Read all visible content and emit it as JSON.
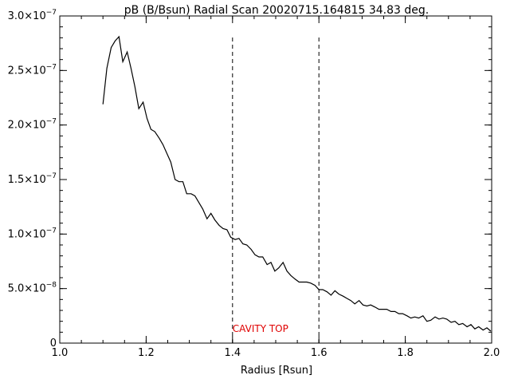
{
  "chart_data": {
    "type": "line",
    "title": "pB (B/Bsun) Radial Scan 20020715.164815 34.83 deg.",
    "xlabel": "Radius [Rsun]",
    "ylabel": "",
    "xlim": [
      1.0,
      2.0
    ],
    "ylim": [
      0,
      3e-07
    ],
    "grid": false,
    "x_ticks": [
      1.0,
      1.2,
      1.4,
      1.6,
      1.8,
      2.0
    ],
    "x_tick_labels": [
      "1.0",
      "1.2",
      "1.4",
      "1.6",
      "1.8",
      "2.0"
    ],
    "y_ticks": [
      {
        "value": 0,
        "mant": "0",
        "exp": ""
      },
      {
        "value": 5e-08,
        "mant": "5.0×10",
        "exp": "−8"
      },
      {
        "value": 1e-07,
        "mant": "1.0×10",
        "exp": "−7"
      },
      {
        "value": 1.5e-07,
        "mant": "1.5×10",
        "exp": "−7"
      },
      {
        "value": 2e-07,
        "mant": "2.0×10",
        "exp": "−7"
      },
      {
        "value": 2.5e-07,
        "mant": "2.5×10",
        "exp": "−7"
      },
      {
        "value": 3e-07,
        "mant": "3.0×10",
        "exp": "−7"
      }
    ],
    "vlines": [
      1.4,
      1.6
    ],
    "annotation": {
      "text": "CAVITY TOP",
      "x": 1.4,
      "y": 1.6e-08,
      "color": "#e00000"
    },
    "series": [
      {
        "color": "#000000",
        "x": [
          1.1,
          1.109,
          1.119,
          1.128,
          1.137,
          1.146,
          1.156,
          1.165,
          1.174,
          1.183,
          1.193,
          1.202,
          1.211,
          1.22,
          1.23,
          1.239,
          1.248,
          1.257,
          1.267,
          1.276,
          1.285,
          1.294,
          1.304,
          1.313,
          1.322,
          1.331,
          1.341,
          1.35,
          1.359,
          1.369,
          1.378,
          1.387,
          1.396,
          1.406,
          1.415,
          1.424,
          1.433,
          1.443,
          1.452,
          1.461,
          1.47,
          1.48,
          1.489,
          1.498,
          1.507,
          1.517,
          1.526,
          1.535,
          1.544,
          1.554,
          1.563,
          1.572,
          1.581,
          1.591,
          1.6,
          1.609,
          1.619,
          1.628,
          1.637,
          1.646,
          1.656,
          1.665,
          1.674,
          1.683,
          1.693,
          1.702,
          1.711,
          1.72,
          1.73,
          1.739,
          1.748,
          1.757,
          1.767,
          1.776,
          1.785,
          1.794,
          1.804,
          1.813,
          1.822,
          1.831,
          1.841,
          1.85,
          1.859,
          1.869,
          1.878,
          1.887,
          1.896,
          1.906,
          1.915,
          1.924,
          1.933,
          1.943,
          1.952,
          1.961,
          1.97,
          1.98,
          1.989,
          1.998
        ],
        "y": [
          2.19e-07,
          2.52e-07,
          2.71e-07,
          2.77e-07,
          2.81e-07,
          2.58e-07,
          2.67e-07,
          2.52e-07,
          2.35e-07,
          2.15e-07,
          2.21e-07,
          2.06e-07,
          1.96e-07,
          1.94e-07,
          1.88e-07,
          1.82e-07,
          1.74e-07,
          1.66e-07,
          1.5e-07,
          1.48e-07,
          1.48e-07,
          1.37e-07,
          1.37e-07,
          1.35e-07,
          1.29e-07,
          1.23e-07,
          1.14e-07,
          1.19e-07,
          1.13e-07,
          1.08e-07,
          1.05e-07,
          1.04e-07,
          9.7e-08,
          9.5e-08,
          9.6e-08,
          9.1e-08,
          9e-08,
          8.6e-08,
          8.1e-08,
          7.9e-08,
          7.9e-08,
          7.2e-08,
          7.4e-08,
          6.6e-08,
          6.9e-08,
          7.4e-08,
          6.6e-08,
          6.2e-08,
          5.9e-08,
          5.6e-08,
          5.6e-08,
          5.6e-08,
          5.5e-08,
          5.3e-08,
          4.9e-08,
          4.9e-08,
          4.7e-08,
          4.4e-08,
          4.8e-08,
          4.5e-08,
          4.3e-08,
          4.1e-08,
          3.9e-08,
          3.6e-08,
          3.9e-08,
          3.5e-08,
          3.4e-08,
          3.5e-08,
          3.3e-08,
          3.1e-08,
          3.1e-08,
          3.1e-08,
          2.9e-08,
          2.9e-08,
          2.7e-08,
          2.7e-08,
          2.5e-08,
          2.3e-08,
          2.4e-08,
          2.3e-08,
          2.5e-08,
          2e-08,
          2.1e-08,
          2.4e-08,
          2.2e-08,
          2.3e-08,
          2.2e-08,
          1.9e-08,
          2e-08,
          1.7e-08,
          1.8e-08,
          1.5e-08,
          1.7e-08,
          1.3e-08,
          1.5e-08,
          1.2e-08,
          1.4e-08,
          1.1e-08
        ]
      }
    ]
  }
}
